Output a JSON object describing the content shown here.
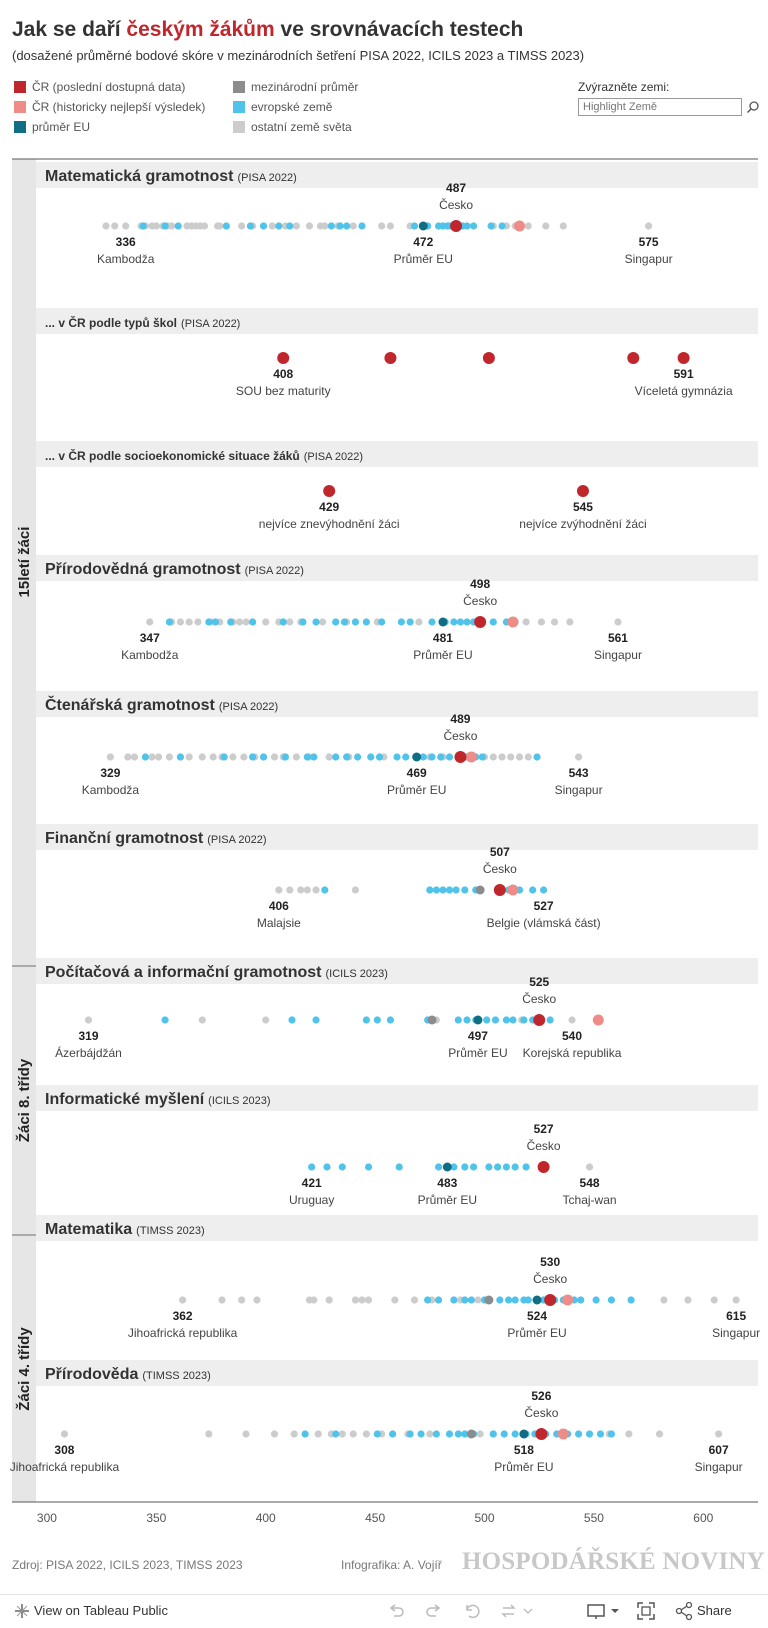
{
  "header": {
    "title_pre": "Jak se daří ",
    "title_highlight": "českým žákům",
    "title_post": " ve srovnávacích testech",
    "subtitle": "(dosažené průměrné bodové skóre v mezinárodních šetření PISA 2022, ICILS 2023 a TIMSS 2023)"
  },
  "legend": [
    {
      "label": "ČR (poslední dostupná data)",
      "color": "#c0272d"
    },
    {
      "label": "ČR (historicky nejlepší výsledek)",
      "color": "#f08c87"
    },
    {
      "label": "průměr EU",
      "color": "#0f6e84"
    },
    {
      "label": "mezinárodní průměr",
      "color": "#8a8c8e"
    },
    {
      "label": "evropské země",
      "color": "#4fc3ea"
    },
    {
      "label": "ostatní země světa",
      "color": "#cccccc"
    }
  ],
  "highlight": {
    "label": "Zvýrazněte zemi:",
    "placeholder": "Highlight Země"
  },
  "chart_data": {
    "type": "scatter",
    "x_axis": {
      "ticks": [
        300,
        350,
        400,
        450,
        500,
        550,
        600
      ],
      "range": [
        295,
        625
      ]
    },
    "colors": {
      "cr": "#c0272d",
      "best": "#f08c87",
      "eu": "#0f6e84",
      "intl": "#8a8c8e",
      "eur": "#4fc3ea",
      "world": "#cccccc"
    },
    "groups": [
      {
        "label": "15letí žáci"
      },
      {
        "label": "Žáci 8. třídy"
      },
      {
        "label": "Žáci 4. třídy"
      }
    ],
    "panels": [
      {
        "group": 0,
        "title": "Matematická gramotnost",
        "source": "(PISA 2022)",
        "world": [
          327,
          331,
          336,
          343,
          345,
          348,
          350,
          353,
          355,
          357,
          364,
          366,
          368,
          370,
          372,
          378,
          379,
          389,
          394,
          403,
          409,
          414,
          420,
          425,
          427,
          433,
          440,
          453,
          457,
          466,
          504,
          510,
          514,
          520,
          528,
          536,
          575
        ],
        "eur": [
          344,
          354,
          360,
          382,
          393,
          399,
          406,
          411,
          430,
          434,
          437,
          444,
          468,
          472,
          474,
          479,
          481,
          483,
          484,
          488,
          490,
          492,
          495,
          503,
          508
        ],
        "eu": 472,
        "intl": null,
        "cr": 487,
        "best": 516,
        "labels": [
          {
            "value": 336,
            "name": "Kambodža",
            "dir": "below"
          },
          {
            "value": 472,
            "name": "Průměr EU",
            "dir": "below"
          },
          {
            "value": 487,
            "name": "Česko",
            "dir": "above"
          },
          {
            "value": 575,
            "name": "Singapur",
            "dir": "below"
          }
        ]
      },
      {
        "group": 0,
        "title": "... v ČR podle typů škol",
        "source": "(PISA 2022)",
        "cr_points": [
          408,
          457,
          502,
          568,
          591
        ],
        "labels": [
          {
            "value": 408,
            "name": "SOU bez maturity",
            "dir": "below"
          },
          {
            "value": 591,
            "name": "Víceletá gymnázia",
            "dir": "below"
          }
        ]
      },
      {
        "group": 0,
        "title": "... v ČR podle socioekonomické situace žáků",
        "source": "(PISA 2022)",
        "cr_points": [
          429,
          545
        ],
        "labels": [
          {
            "value": 429,
            "name": "nejvíce znevýhodnění žáci",
            "dir": "below"
          },
          {
            "value": 545,
            "name": "nejvíce zvýhodnění žáci",
            "dir": "below"
          }
        ]
      },
      {
        "group": 0,
        "title": "Přírodovědná gramotnost",
        "source": "(PISA 2022)",
        "world": [
          347,
          357,
          361,
          365,
          369,
          375,
          379,
          385,
          388,
          391,
          400,
          406,
          411,
          416,
          426,
          437,
          451,
          470,
          519,
          526,
          532,
          539,
          561
        ],
        "eur": [
          356,
          374,
          377,
          384,
          394,
          408,
          417,
          423,
          432,
          436,
          441,
          446,
          453,
          462,
          466,
          476,
          482,
          486,
          489,
          492,
          495,
          504,
          510,
          514
        ],
        "eu": 481,
        "intl": null,
        "cr": 498,
        "best": 513,
        "labels": [
          {
            "value": 347,
            "name": "Kambodža",
            "dir": "below"
          },
          {
            "value": 481,
            "name": "Průměr EU",
            "dir": "below"
          },
          {
            "value": 498,
            "name": "Česko",
            "dir": "above"
          },
          {
            "value": 561,
            "name": "Singapur",
            "dir": "below"
          }
        ]
      },
      {
        "group": 0,
        "title": "Čtenářská gramotnost",
        "source": "(PISA 2022)",
        "world": [
          329,
          337,
          340,
          348,
          351,
          356,
          361,
          365,
          371,
          376,
          380,
          385,
          390,
          395,
          399,
          404,
          408,
          414,
          420,
          429,
          438,
          454,
          475,
          481,
          500,
          504,
          508,
          512,
          516,
          520,
          543
        ],
        "eur": [
          345,
          361,
          381,
          394,
          399,
          409,
          419,
          422,
          432,
          437,
          442,
          448,
          452,
          460,
          464,
          472,
          476,
          480,
          484,
          492,
          496,
          499,
          524
        ],
        "eu": 469,
        "intl": null,
        "cr": 489,
        "best": 494,
        "labels": [
          {
            "value": 329,
            "name": "Kambodža",
            "dir": "below"
          },
          {
            "value": 469,
            "name": "Průměr EU",
            "dir": "below"
          },
          {
            "value": 489,
            "name": "Česko",
            "dir": "above"
          },
          {
            "value": 543,
            "name": "Singapur",
            "dir": "below"
          }
        ]
      },
      {
        "group": 0,
        "title": "Finanční gramotnost",
        "source": "(PISA 2022)",
        "world": [
          406,
          411,
          416,
          419,
          423,
          441
        ],
        "eur": [
          427,
          475,
          478,
          481,
          484,
          487,
          491,
          496,
          511,
          516,
          522,
          527
        ],
        "eu": null,
        "intl": 498,
        "cr": 507,
        "best": 513,
        "labels": [
          {
            "value": 406,
            "name": "Malajsie",
            "dir": "below"
          },
          {
            "value": 507,
            "name": "Česko",
            "dir": "above"
          },
          {
            "value": 527,
            "name": "Belgie (vlámská část)",
            "dir": "below"
          }
        ]
      },
      {
        "group": 1,
        "title": "Počítačová a informační gramotnost",
        "source": "(ICILS 2023)",
        "world": [
          319,
          371,
          400,
          478,
          497,
          517,
          540
        ],
        "eur": [
          354,
          412,
          423,
          446,
          451,
          457,
          474,
          488,
          492,
          496,
          501,
          505,
          510,
          513,
          518,
          522,
          530
        ],
        "eu": 497,
        "intl": 476,
        "cr": 525,
        "best": 552,
        "labels": [
          {
            "value": 319,
            "name": "Ázerbájdžán",
            "dir": "below"
          },
          {
            "value": 497,
            "name": "Průměr EU",
            "dir": "below"
          },
          {
            "value": 525,
            "name": "Česko",
            "dir": "above"
          },
          {
            "value": 540,
            "name": "Korejská republika",
            "dir": "below"
          }
        ]
      },
      {
        "group": 1,
        "title": "Informatické myšlení",
        "source": "(ICILS 2023)",
        "world": [
          548
        ],
        "eur": [
          421,
          428,
          435,
          447,
          461,
          479,
          486,
          491,
          495,
          502,
          506,
          510,
          514,
          519
        ],
        "eu": 483,
        "intl": null,
        "cr": 527,
        "best": null,
        "labels": [
          {
            "value": 421,
            "name": "Uruguay",
            "dir": "below"
          },
          {
            "value": 483,
            "name": "Průměr EU",
            "dir": "below"
          },
          {
            "value": 527,
            "name": "Česko",
            "dir": "above"
          },
          {
            "value": 548,
            "name": "Tchaj-wan",
            "dir": "below"
          }
        ]
      },
      {
        "group": 2,
        "title": "Matematika",
        "source": "(TIMSS 2023)",
        "world": [
          362,
          380,
          389,
          396,
          420,
          422,
          429,
          441,
          444,
          447,
          459,
          468,
          476,
          489,
          497,
          582,
          593,
          605,
          615
        ],
        "eur": [
          474,
          479,
          486,
          491,
          494,
          500,
          507,
          511,
          514,
          518,
          520,
          524,
          527,
          532,
          536,
          541,
          544,
          551,
          558,
          567
        ],
        "eu": 524,
        "intl": 502,
        "cr": 530,
        "best": 538,
        "labels": [
          {
            "value": 362,
            "name": "Jihoafrická republika",
            "dir": "below"
          },
          {
            "value": 524,
            "name": "Průměr EU",
            "dir": "below"
          },
          {
            "value": 530,
            "name": "Česko",
            "dir": "above"
          },
          {
            "value": 615,
            "name": "Singapur",
            "dir": "below"
          }
        ]
      },
      {
        "group": 2,
        "title": "Přírodověda",
        "source": "(TIMSS 2023)",
        "world": [
          308,
          374,
          391,
          404,
          413,
          424,
          430,
          435,
          440,
          446,
          453,
          458,
          465,
          475,
          491,
          498,
          504,
          557,
          566,
          580,
          607
        ],
        "eur": [
          418,
          432,
          451,
          458,
          466,
          471,
          478,
          484,
          488,
          491,
          495,
          504,
          509,
          514,
          519,
          523,
          528,
          533,
          538,
          543,
          548,
          553,
          558
        ],
        "eu": 518,
        "intl": 494,
        "cr": 526,
        "best": 536,
        "labels": [
          {
            "value": 308,
            "name": "Jihoafrická republika",
            "dir": "below"
          },
          {
            "value": 518,
            "name": "Průměr EU",
            "dir": "below"
          },
          {
            "value": 526,
            "name": "Česko",
            "dir": "above"
          },
          {
            "value": 607,
            "name": "Singapur",
            "dir": "below"
          }
        ]
      }
    ]
  },
  "footer": {
    "source": "Zdroj: PISA 2022, ICILS 2023, TIMSS 2023",
    "credit": "Infografika: A. Vojíř",
    "logo": "HOSPODÁŘSKÉ NOVINY"
  },
  "toolbar": {
    "view_label": "View on Tableau Public",
    "share_label": "Share"
  }
}
